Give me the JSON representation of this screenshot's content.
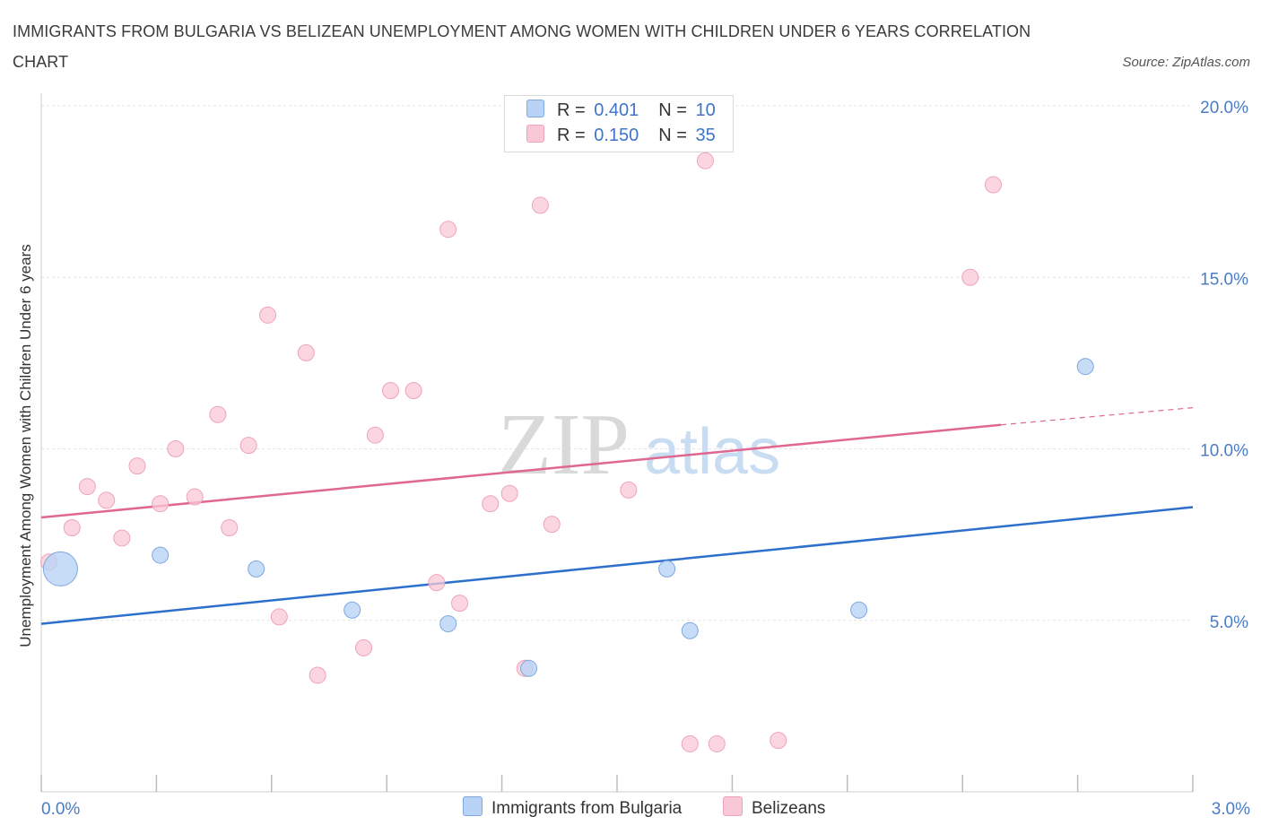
{
  "header": {
    "title": "IMMIGRANTS FROM BULGARIA VS BELIZEAN UNEMPLOYMENT AMONG WOMEN WITH CHILDREN UNDER 6 YEARS CORRELATION CHART",
    "source": "Source: ZipAtlas.com"
  },
  "legend": {
    "r_label": "R =",
    "n_label": "N =",
    "bulgaria": {
      "r": "0.401",
      "n": "10"
    },
    "belize": {
      "r": "0.150",
      "n": "35"
    }
  },
  "bottom_legend": {
    "bulgaria": "Immigrants from Bulgaria",
    "belize": "Belizeans"
  },
  "watermark": {
    "zip": "ZIP",
    "atlas": "atlas"
  },
  "colors": {
    "bulgaria_fill": "#b8d3f5",
    "bulgaria_stroke": "#7ea8de",
    "bulgaria_line": "#2d6fcc",
    "belize_fill": "#f9c8d7",
    "belize_stroke": "#eea3ba",
    "belize_line": "#e0678f"
  },
  "chart_data": {
    "type": "scatter",
    "title": "IMMIGRANTS FROM BULGARIA VS BELIZEAN UNEMPLOYMENT AMONG WOMEN WITH CHILDREN UNDER 6 YEARS CORRELATION CHART",
    "xlabel": "",
    "ylabel": "Unemployment Among Women with Children Under 6 years",
    "xlim": [
      0,
      3.0
    ],
    "ylim": [
      0,
      20.0
    ],
    "x_tick_labels": [
      "0.0%",
      "3.0%"
    ],
    "y_tick_labels": [
      "5.0%",
      "10.0%",
      "15.0%",
      "20.0%"
    ],
    "y_ticks": [
      5,
      10,
      15,
      20
    ],
    "series": [
      {
        "name": "Immigrants from Bulgaria",
        "color": "bulgaria",
        "points": [
          {
            "x": 0.05,
            "y": 6.5,
            "big": true
          },
          {
            "x": 0.31,
            "y": 6.9
          },
          {
            "x": 0.56,
            "y": 6.5
          },
          {
            "x": 0.81,
            "y": 5.3
          },
          {
            "x": 1.06,
            "y": 4.9
          },
          {
            "x": 1.27,
            "y": 3.6
          },
          {
            "x": 1.63,
            "y": 6.5
          },
          {
            "x": 1.69,
            "y": 4.7
          },
          {
            "x": 2.13,
            "y": 5.3
          },
          {
            "x": 2.72,
            "y": 12.4
          }
        ],
        "trend": {
          "x0": 0.0,
          "y0": 4.9,
          "x1": 3.0,
          "y1": 8.3
        }
      },
      {
        "name": "Belizeans",
        "color": "belize",
        "points": [
          {
            "x": 0.02,
            "y": 6.7
          },
          {
            "x": 0.08,
            "y": 7.7
          },
          {
            "x": 0.12,
            "y": 8.9
          },
          {
            "x": 0.17,
            "y": 8.5
          },
          {
            "x": 0.21,
            "y": 7.4
          },
          {
            "x": 0.25,
            "y": 9.5
          },
          {
            "x": 0.31,
            "y": 8.4
          },
          {
            "x": 0.35,
            "y": 10.0
          },
          {
            "x": 0.4,
            "y": 8.6
          },
          {
            "x": 0.46,
            "y": 11.0
          },
          {
            "x": 0.49,
            "y": 7.7
          },
          {
            "x": 0.54,
            "y": 10.1
          },
          {
            "x": 0.59,
            "y": 13.9
          },
          {
            "x": 0.62,
            "y": 5.1
          },
          {
            "x": 0.69,
            "y": 12.8
          },
          {
            "x": 0.72,
            "y": 3.4
          },
          {
            "x": 0.84,
            "y": 4.2
          },
          {
            "x": 0.87,
            "y": 10.4
          },
          {
            "x": 0.91,
            "y": 11.7
          },
          {
            "x": 0.97,
            "y": 11.7
          },
          {
            "x": 1.03,
            "y": 6.1
          },
          {
            "x": 1.06,
            "y": 16.4
          },
          {
            "x": 1.09,
            "y": 5.5
          },
          {
            "x": 1.17,
            "y": 8.4
          },
          {
            "x": 1.22,
            "y": 8.7
          },
          {
            "x": 1.26,
            "y": 3.6
          },
          {
            "x": 1.3,
            "y": 17.1
          },
          {
            "x": 1.33,
            "y": 7.8
          },
          {
            "x": 1.53,
            "y": 8.8
          },
          {
            "x": 1.69,
            "y": 1.4
          },
          {
            "x": 1.76,
            "y": 1.4
          },
          {
            "x": 1.73,
            "y": 18.4
          },
          {
            "x": 1.92,
            "y": 1.5
          },
          {
            "x": 2.42,
            "y": 15.0
          },
          {
            "x": 2.48,
            "y": 17.7
          }
        ],
        "trend": {
          "x0": 0.0,
          "y0": 8.0,
          "x1": 2.5,
          "y1": 10.7,
          "x_dash_end": 3.0,
          "y_dash_end": 11.2
        }
      }
    ]
  }
}
